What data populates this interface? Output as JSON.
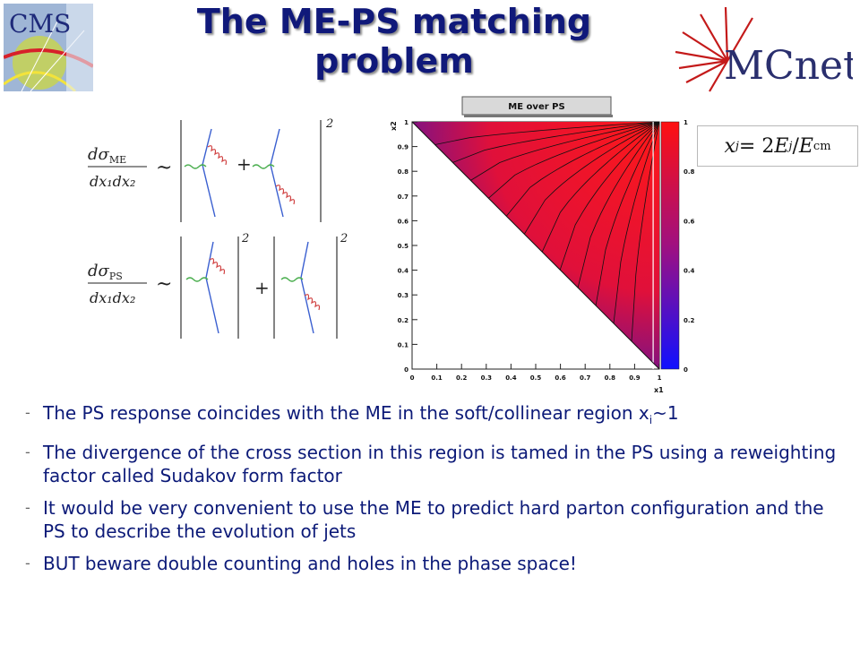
{
  "title": {
    "line1": "The ME-PS matching",
    "line2": "problem"
  },
  "logos": {
    "cms": "CMS",
    "mcnet": "MCnet"
  },
  "equations": {
    "me_lhs_num": "dσ",
    "me_lhs_sub": "ME",
    "me_lhs_den": "dx₁dx₂",
    "ps_lhs_num": "dσ",
    "ps_lhs_sub": "PS",
    "ps_lhs_den": "dx₁dx₂",
    "sim": "~",
    "plus": "+",
    "square": "2"
  },
  "formula": {
    "text": "x_j = 2E_j / E_cm",
    "lhs": "x",
    "lhs_sub": "j",
    "rhs_pre": " = 2",
    "E": "E",
    "E_sub": "j",
    "slash": "/",
    "Ecm": "E",
    "Ecm_sub": "cm"
  },
  "chart_data": {
    "type": "heatmap",
    "title": "ME over PS",
    "xlabel": "x1",
    "ylabel": "x2",
    "xlim": [
      0,
      1
    ],
    "ylim": [
      0,
      1
    ],
    "x_ticks": [
      "0",
      "0.1",
      "0.2",
      "0.3",
      "0.4",
      "0.5",
      "0.6",
      "0.7",
      "0.8",
      "0.9",
      "1"
    ],
    "y_ticks": [
      "0",
      "0.1",
      "0.2",
      "0.3",
      "0.4",
      "0.5",
      "0.6",
      "0.7",
      "0.8",
      "0.9",
      "1"
    ],
    "colorbar_ticks": [
      "0",
      "0.2",
      "0.4",
      "0.6",
      "0.8",
      "1"
    ],
    "colorbar_range": [
      0,
      1
    ],
    "colors": {
      "low": "#1010ff",
      "high": "#ff1010"
    },
    "region": "x1 + x2 > 1",
    "contour_count": 12
  },
  "bullets": [
    {
      "pre": "The PS response coincides with the ME in the soft/collinear region x",
      "sub": "i",
      "post": "~1"
    },
    {
      "pre": "The divergence of the cross section in this region is tamed in the PS using a reweighting factor called Sudakov form factor",
      "sub": "",
      "post": ""
    },
    {
      "pre": "It would be very convenient to use the ME to predict hard parton configuration and the PS to describe the evolution of jets",
      "sub": "",
      "post": ""
    },
    {
      "pre": "BUT beware double counting and holes in the phase space!",
      "sub": "",
      "post": ""
    }
  ],
  "bullet_dash": "-"
}
